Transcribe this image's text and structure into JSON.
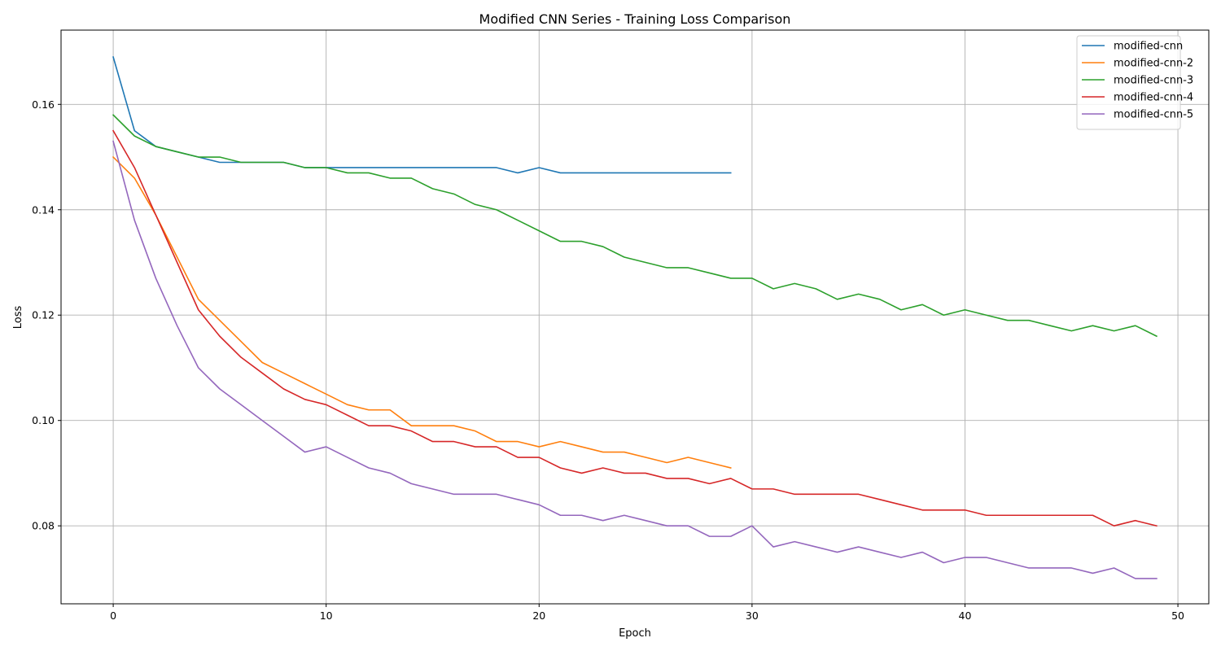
{
  "chart_data": {
    "type": "line",
    "title": "Modified CNN Series - Training Loss Comparison",
    "xlabel": "Epoch",
    "ylabel": "Loss",
    "xlim": [
      -2.45,
      51.45
    ],
    "ylim": [
      0.0652,
      0.1741
    ],
    "x_ticks": [
      0,
      10,
      20,
      30,
      40,
      50
    ],
    "y_ticks": [
      0.08,
      0.1,
      0.12,
      0.14,
      0.16
    ],
    "y_tick_labels": [
      "0.08",
      "0.10",
      "0.12",
      "0.14",
      "0.16"
    ],
    "grid": true,
    "legend_position": "top-right",
    "series": [
      {
        "name": "modified-cnn",
        "color": "#1f77b4",
        "values": [
          0.169,
          0.155,
          0.152,
          0.151,
          0.15,
          0.149,
          0.149,
          0.149,
          0.149,
          0.148,
          0.148,
          0.148,
          0.148,
          0.148,
          0.148,
          0.148,
          0.148,
          0.148,
          0.148,
          0.147,
          0.148,
          0.147,
          0.147,
          0.147,
          0.147,
          0.147,
          0.147,
          0.147,
          0.147,
          0.147
        ]
      },
      {
        "name": "modified-cnn-2",
        "color": "#ff7f0e",
        "values": [
          0.15,
          0.146,
          0.139,
          0.131,
          0.123,
          0.119,
          0.115,
          0.111,
          0.109,
          0.107,
          0.105,
          0.103,
          0.102,
          0.102,
          0.099,
          0.099,
          0.099,
          0.098,
          0.096,
          0.096,
          0.095,
          0.096,
          0.095,
          0.094,
          0.094,
          0.093,
          0.092,
          0.093,
          0.092,
          0.091
        ]
      },
      {
        "name": "modified-cnn-3",
        "color": "#2ca02c",
        "values": [
          0.158,
          0.154,
          0.152,
          0.151,
          0.15,
          0.15,
          0.149,
          0.149,
          0.149,
          0.148,
          0.148,
          0.147,
          0.147,
          0.146,
          0.146,
          0.144,
          0.143,
          0.141,
          0.14,
          0.138,
          0.136,
          0.134,
          0.134,
          0.133,
          0.131,
          0.13,
          0.129,
          0.129,
          0.128,
          0.127,
          0.127,
          0.125,
          0.126,
          0.125,
          0.123,
          0.124,
          0.123,
          0.121,
          0.122,
          0.12,
          0.121,
          0.12,
          0.119,
          0.119,
          0.118,
          0.117,
          0.118,
          0.117,
          0.118,
          0.116
        ]
      },
      {
        "name": "modified-cnn-4",
        "color": "#d62728",
        "values": [
          0.155,
          0.148,
          0.139,
          0.13,
          0.121,
          0.116,
          0.112,
          0.109,
          0.106,
          0.104,
          0.103,
          0.101,
          0.099,
          0.099,
          0.098,
          0.096,
          0.096,
          0.095,
          0.095,
          0.093,
          0.093,
          0.091,
          0.09,
          0.091,
          0.09,
          0.09,
          0.089,
          0.089,
          0.088,
          0.089,
          0.087,
          0.087,
          0.086,
          0.086,
          0.086,
          0.086,
          0.085,
          0.084,
          0.083,
          0.083,
          0.083,
          0.082,
          0.082,
          0.082,
          0.082,
          0.082,
          0.082,
          0.08,
          0.081,
          0.08
        ]
      },
      {
        "name": "modified-cnn-5",
        "color": "#9467bd",
        "values": [
          0.153,
          0.138,
          0.127,
          0.118,
          0.11,
          0.106,
          0.103,
          0.1,
          0.097,
          0.094,
          0.095,
          0.093,
          0.091,
          0.09,
          0.088,
          0.087,
          0.086,
          0.086,
          0.086,
          0.085,
          0.084,
          0.082,
          0.082,
          0.081,
          0.082,
          0.081,
          0.08,
          0.08,
          0.078,
          0.078,
          0.08,
          0.076,
          0.077,
          0.076,
          0.075,
          0.076,
          0.075,
          0.074,
          0.075,
          0.073,
          0.074,
          0.074,
          0.073,
          0.072,
          0.072,
          0.072,
          0.071,
          0.072,
          0.07,
          0.07
        ]
      }
    ]
  }
}
